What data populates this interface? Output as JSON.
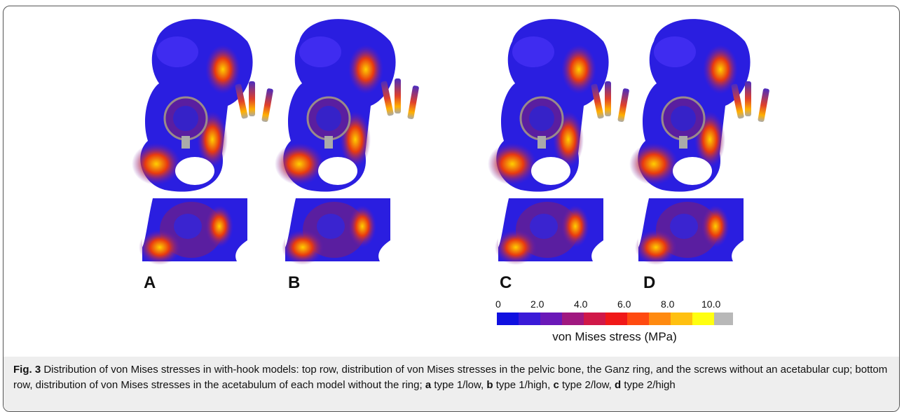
{
  "panels": [
    "A",
    "B",
    "C",
    "D"
  ],
  "colorbar": {
    "ticks": [
      "0",
      "2.0",
      "4.0",
      "6.0",
      "8.0",
      "10.0"
    ],
    "title": "von Mises stress (MPa)"
  },
  "caption": [
    "Fig. 3",
    " Distribution of von Mises stresses in with-hook models: top row, distribution of von Mises stresses in the pelvic bone, the Ganz ring, and the screws without an acetabular cup; bottom row, distribution of von Mises stresses in the acetabulum of each model without the ring; ",
    "a",
    " type 1/low, ",
    "b",
    " type 1/high, ",
    "c",
    " type 2/low, ",
    "d",
    " type 2/high"
  ]
}
